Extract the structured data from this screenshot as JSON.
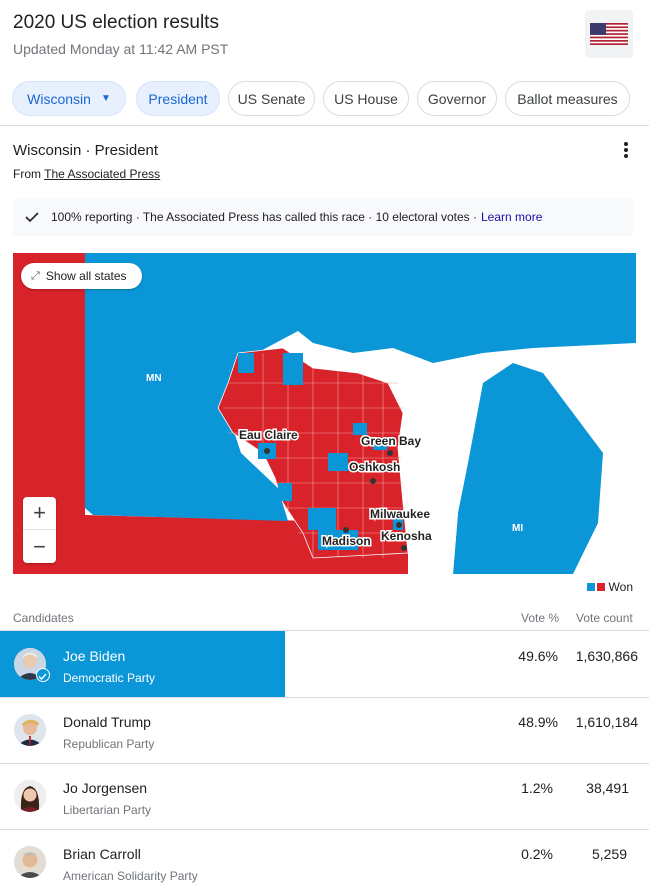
{
  "header": {
    "title": "2020 US election results",
    "updated": "Updated Monday at 11:42 AM PST",
    "flag_icon": "us-flag-icon"
  },
  "chips": [
    {
      "label": "Wisconsin",
      "active": true,
      "dropdown": true
    },
    {
      "label": "President",
      "active": true
    },
    {
      "label": "US Senate"
    },
    {
      "label": "US House"
    },
    {
      "label": "Governor"
    },
    {
      "label": "Ballot measures"
    }
  ],
  "race": {
    "title": "Wisconsin · President",
    "from_prefix": "From",
    "source": "The Associated Press",
    "info_text": "100% reporting · The Associated Press has called this race · 10 electoral votes ·",
    "learn_more": "Learn more"
  },
  "map": {
    "show_all": "Show all states",
    "zoom_in": "+",
    "zoom_out": "−",
    "labels": {
      "mn": "MN",
      "mi": "MI",
      "eau_claire": "Eau Claire",
      "green_bay": "Green Bay",
      "oshkosh": "Oshkosh",
      "milwaukee": "Milwaukee",
      "madison": "Madison",
      "kenosha": "Kenosha"
    },
    "colors": {
      "dem": "#0b97d7",
      "rep": "#d8232a"
    }
  },
  "legend": {
    "label": "Won"
  },
  "table": {
    "col_candidates": "Candidates",
    "col_vote_pct": "Vote %",
    "col_vote_count": "Vote count",
    "rows": [
      {
        "name": "Joe Biden",
        "party": "Democratic Party",
        "pct": "49.6%",
        "count": "1,630,866",
        "winner": true
      },
      {
        "name": "Donald Trump",
        "party": "Republican Party",
        "pct": "48.9%",
        "count": "1,610,184"
      },
      {
        "name": "Jo Jorgensen",
        "party": "Libertarian Party",
        "pct": "1.2%",
        "count": "38,491"
      },
      {
        "name": "Brian Carroll",
        "party": "American Solidarity Party",
        "pct": "0.2%",
        "count": "5,259"
      }
    ]
  }
}
